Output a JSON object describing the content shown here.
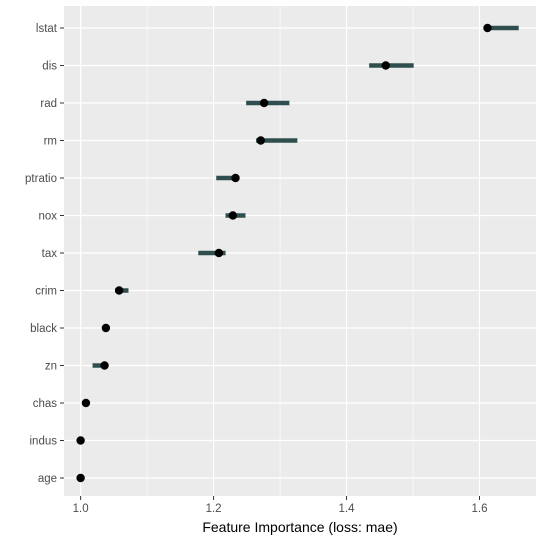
{
  "chart_data": {
    "type": "dot-interval",
    "title": "",
    "xlabel": "Feature Importance (loss: mae)",
    "ylabel": "",
    "xlim": [
      0.975,
      1.685
    ],
    "x_ticks": [
      "1.0",
      "1.2",
      "1.4",
      "1.6"
    ],
    "x_tick_values": [
      1.0,
      1.2,
      1.4,
      1.6
    ],
    "grid": true,
    "legend": "none",
    "colors": {
      "panel": "#ebebeb",
      "grid": "#ffffff",
      "interval": "#2f4f4f",
      "point": "#000000",
      "tick": "#333333"
    },
    "features": [
      "lstat",
      "dis",
      "rad",
      "rm",
      "ptratio",
      "nox",
      "tax",
      "crim",
      "black",
      "zn",
      "chas",
      "indus",
      "age"
    ],
    "importance": [
      1.612,
      1.459,
      1.276,
      1.271,
      1.233,
      1.229,
      1.208,
      1.058,
      1.038,
      1.036,
      1.008,
      1.0,
      1.0
    ],
    "interval_low": [
      1.612,
      1.434,
      1.249,
      1.264,
      1.204,
      1.218,
      1.177,
      1.052,
      1.036,
      1.018,
      1.006,
      0.999,
      0.999
    ],
    "interval_high": [
      1.659,
      1.501,
      1.314,
      1.326,
      1.235,
      1.248,
      1.218,
      1.072,
      1.041,
      1.039,
      1.011,
      1.002,
      1.002
    ]
  }
}
